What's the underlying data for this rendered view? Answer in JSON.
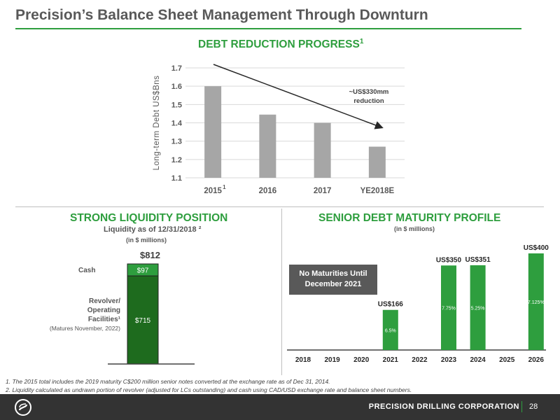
{
  "title": "Precision’s Balance Sheet Management Through Downturn",
  "debt_section": {
    "heading": "DEBT REDUCTION PROGRESS",
    "heading_sup": "1",
    "annotation_line1": "~US$330mm",
    "annotation_line2": "reduction",
    "first_label_sup": "1"
  },
  "liquidity_section": {
    "heading": "STRONG LIQUIDITY POSITION",
    "subtitle": "Liquidity as of 12/31/2018 ²",
    "units": "(in $ millions)",
    "total": "$812",
    "cash_label": "Cash",
    "revolver_label_1": "Revolver/",
    "revolver_label_2": "Operating",
    "revolver_label_3": "Facilities¹",
    "revolver_note": "(Matures November, 2022)"
  },
  "maturity_section": {
    "heading": "SENIOR DEBT MATURITY PROFILE",
    "units": "(in $ millions)",
    "callout_line1": "No Maturities Until",
    "callout_line2": "December 2021"
  },
  "footnotes": {
    "note1": "1. The 2015 total includes the 2019 maturity C$200 million senior notes converted at the exchange rate as of Dec 31, 2014.",
    "note2": "2. Liquidity calculated as undrawn portion of revolver (adjusted for LCs outstanding) and cash using CAD/USD exchange rate and balance sheet numbers."
  },
  "footer": {
    "company": "PRECISION DRILLING CORPORATION",
    "page": "28"
  },
  "colors": {
    "brand_green": "#2e9e3e",
    "dark_green": "#1e6b1e",
    "gray_bar": "#a6a6a6",
    "footer_bg": "#333333"
  },
  "chart_data": [
    {
      "type": "bar",
      "categories": [
        "2015",
        "2016",
        "2017",
        "YE2018E"
      ],
      "values": [
        1.6,
        1.445,
        1.4,
        1.27
      ],
      "ylabel": "Long-term Debt US$Bns",
      "ylim": [
        1.1,
        1.7
      ],
      "yticks": [
        "1.1",
        "1.2",
        "1.3",
        "1.4",
        "1.5",
        "1.6",
        "1.7"
      ],
      "grid": true
    },
    {
      "type": "bar",
      "stacked": true,
      "series": [
        {
          "name": "Revolver/Operating Facilities",
          "values": [
            715
          ],
          "label": "$715"
        },
        {
          "name": "Cash",
          "values": [
            97
          ],
          "label": "$97"
        }
      ],
      "total": 812
    },
    {
      "type": "bar",
      "categories": [
        "2018",
        "2019",
        "2020",
        "2021",
        "2022",
        "2023",
        "2024",
        "2025",
        "2026"
      ],
      "values": [
        0,
        0,
        0,
        166,
        0,
        350,
        351,
        0,
        400
      ],
      "labels": [
        "",
        "",
        "",
        "US$166",
        "",
        "US$350",
        "US$351",
        "",
        "US$400"
      ],
      "coupons": [
        "",
        "",
        "",
        "6.5%",
        "",
        "7.75%",
        "5.25%",
        "",
        "7.125%"
      ]
    }
  ]
}
